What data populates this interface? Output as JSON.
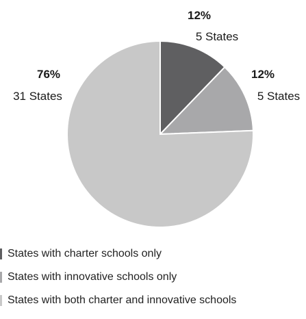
{
  "chart_data": {
    "type": "pie",
    "title": "",
    "slices": [
      {
        "name": "States with charter schools only",
        "percent_label": "12%",
        "count_label": "5 States",
        "value": 5,
        "color": "#5f5f61"
      },
      {
        "name": "States with innovative schools only",
        "percent_label": "12%",
        "count_label": "5 States",
        "value": 5,
        "color": "#a8a8aa"
      },
      {
        "name": "States with both charter and innovative schools",
        "percent_label": "76%",
        "count_label": "31 States",
        "value": 31,
        "color": "#c8c8c8"
      }
    ],
    "legend_position": "bottom-left"
  },
  "legend": {
    "items": [
      {
        "label": "States with charter schools only",
        "color": "#5f5f61"
      },
      {
        "label": "States with innovative schools only",
        "color": "#a8a8aa"
      },
      {
        "label": "States with both charter and innovative schools",
        "color": "#c8c8c8"
      }
    ]
  }
}
